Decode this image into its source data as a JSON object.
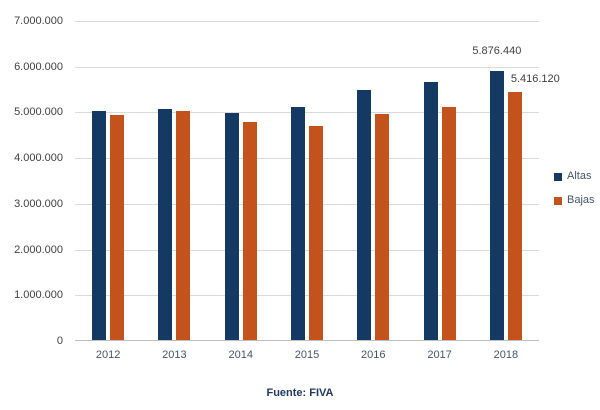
{
  "footer": {
    "source": "Fuente: FIVA"
  },
  "chart_data": {
    "type": "bar",
    "title": "",
    "xlabel": "",
    "ylabel": "",
    "categories": [
      "2012",
      "2013",
      "2014",
      "2015",
      "2016",
      "2017",
      "2018"
    ],
    "series": [
      {
        "name": "Altas",
        "color": "#143A64",
        "values": [
          5000000,
          5050000,
          4960000,
          5090000,
          5460000,
          5640000,
          5876440
        ]
      },
      {
        "name": "Bajas",
        "color": "#C4521C",
        "values": [
          4930000,
          5000000,
          4780000,
          4690000,
          4950000,
          5100000,
          5416120
        ]
      }
    ],
    "point_labels": [
      {
        "series": 0,
        "category": "2018",
        "text": "5.876.440"
      },
      {
        "series": 1,
        "category": "2018",
        "text": "5.416.120"
      }
    ],
    "ylim": [
      0,
      7000000
    ],
    "y_tick_labels": [
      "0",
      "1.000.000",
      "2.000.000",
      "3.000.000",
      "4.000.000",
      "5.000.000",
      "6.000.000",
      "7.000.000"
    ],
    "grid": true,
    "legend_position": "right",
    "colors": {
      "gridline": "#D9D9D9",
      "axis_line": "#BFBFBF",
      "y_tick_text": "#404040",
      "x_tick_text": "#44546A",
      "legend_text": "#44546A",
      "data_label_text": "#404040",
      "footer_text": "#1F3864",
      "background": "#FFFFFF"
    }
  }
}
